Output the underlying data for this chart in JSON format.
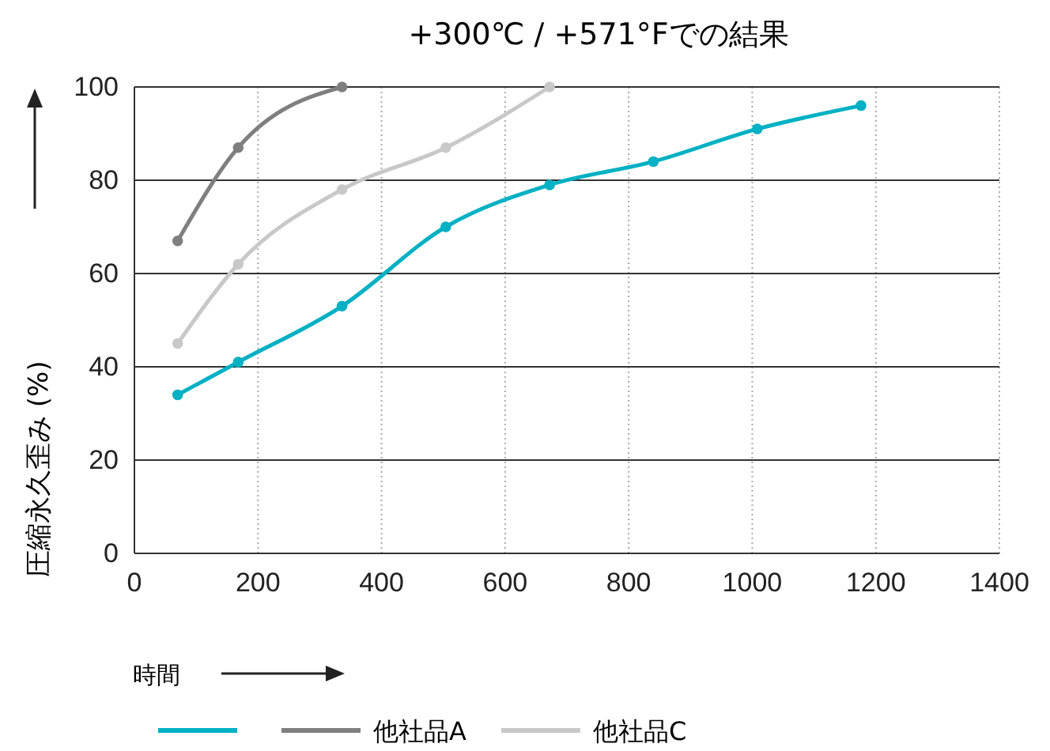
{
  "chart_data": {
    "type": "line",
    "title": "+300℃ / +571°Fでの結果",
    "xlabel": "時間",
    "ylabel": "圧縮永久歪み (%)",
    "xlim": [
      0,
      1400
    ],
    "xticks": [
      0,
      200,
      400,
      600,
      800,
      1000,
      1200,
      1400
    ],
    "ylim": [
      0,
      100
    ],
    "yticks": [
      0,
      20,
      40,
      60,
      80,
      100
    ],
    "grid": true,
    "legend": "bottom",
    "marker": "circle",
    "line_style": "solid",
    "series": [
      {
        "color": "#00b0c3",
        "x": [
          70,
          168,
          336,
          504,
          672,
          840,
          1008,
          1176
        ],
        "values": [
          34,
          41,
          53,
          70,
          79,
          84,
          91,
          96
        ]
      },
      {
        "name": "他社品A",
        "color": "#7f7f7f",
        "x": [
          70,
          168,
          336
        ],
        "values": [
          67,
          87,
          100
        ]
      },
      {
        "name": "他社品C",
        "color": "#c8c8c8",
        "x": [
          70,
          168,
          336,
          504,
          672
        ],
        "values": [
          45,
          62,
          78,
          87,
          100
        ]
      }
    ]
  }
}
